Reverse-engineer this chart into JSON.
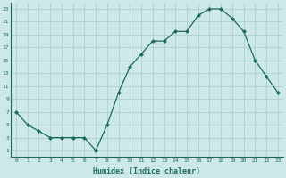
{
  "x": [
    0,
    1,
    2,
    3,
    4,
    5,
    6,
    7,
    8,
    9,
    10,
    11,
    12,
    13,
    14,
    15,
    16,
    17,
    18,
    19,
    20,
    21,
    22,
    23
  ],
  "y": [
    7,
    5,
    4,
    3,
    3,
    3,
    3,
    1,
    5,
    10,
    14,
    16,
    18,
    18,
    19.5,
    19.5,
    22,
    23,
    23,
    21.5,
    19.5,
    15,
    12.5,
    10
  ],
  "line_color": "#1a6b5a",
  "marker": "D",
  "marker_size": 2.0,
  "bg_color": "#cce8e8",
  "grid_color": "#aacccc",
  "xlabel": "Humidex (Indice chaleur)",
  "xlim": [
    -0.5,
    23.5
  ],
  "ylim": [
    0,
    24
  ],
  "yticks": [
    1,
    3,
    5,
    7,
    9,
    11,
    13,
    15,
    17,
    19,
    21,
    23
  ],
  "xticks": [
    0,
    1,
    2,
    3,
    4,
    5,
    6,
    7,
    8,
    9,
    10,
    11,
    12,
    13,
    14,
    15,
    16,
    17,
    18,
    19,
    20,
    21,
    22,
    23
  ],
  "xtick_labels": [
    "0",
    "1",
    "2",
    "3",
    "4",
    "5",
    "6",
    "7",
    "8",
    "9",
    "10",
    "11",
    "12",
    "13",
    "14",
    "15",
    "16",
    "17",
    "18",
    "19",
    "20",
    "21",
    "22",
    "23"
  ]
}
